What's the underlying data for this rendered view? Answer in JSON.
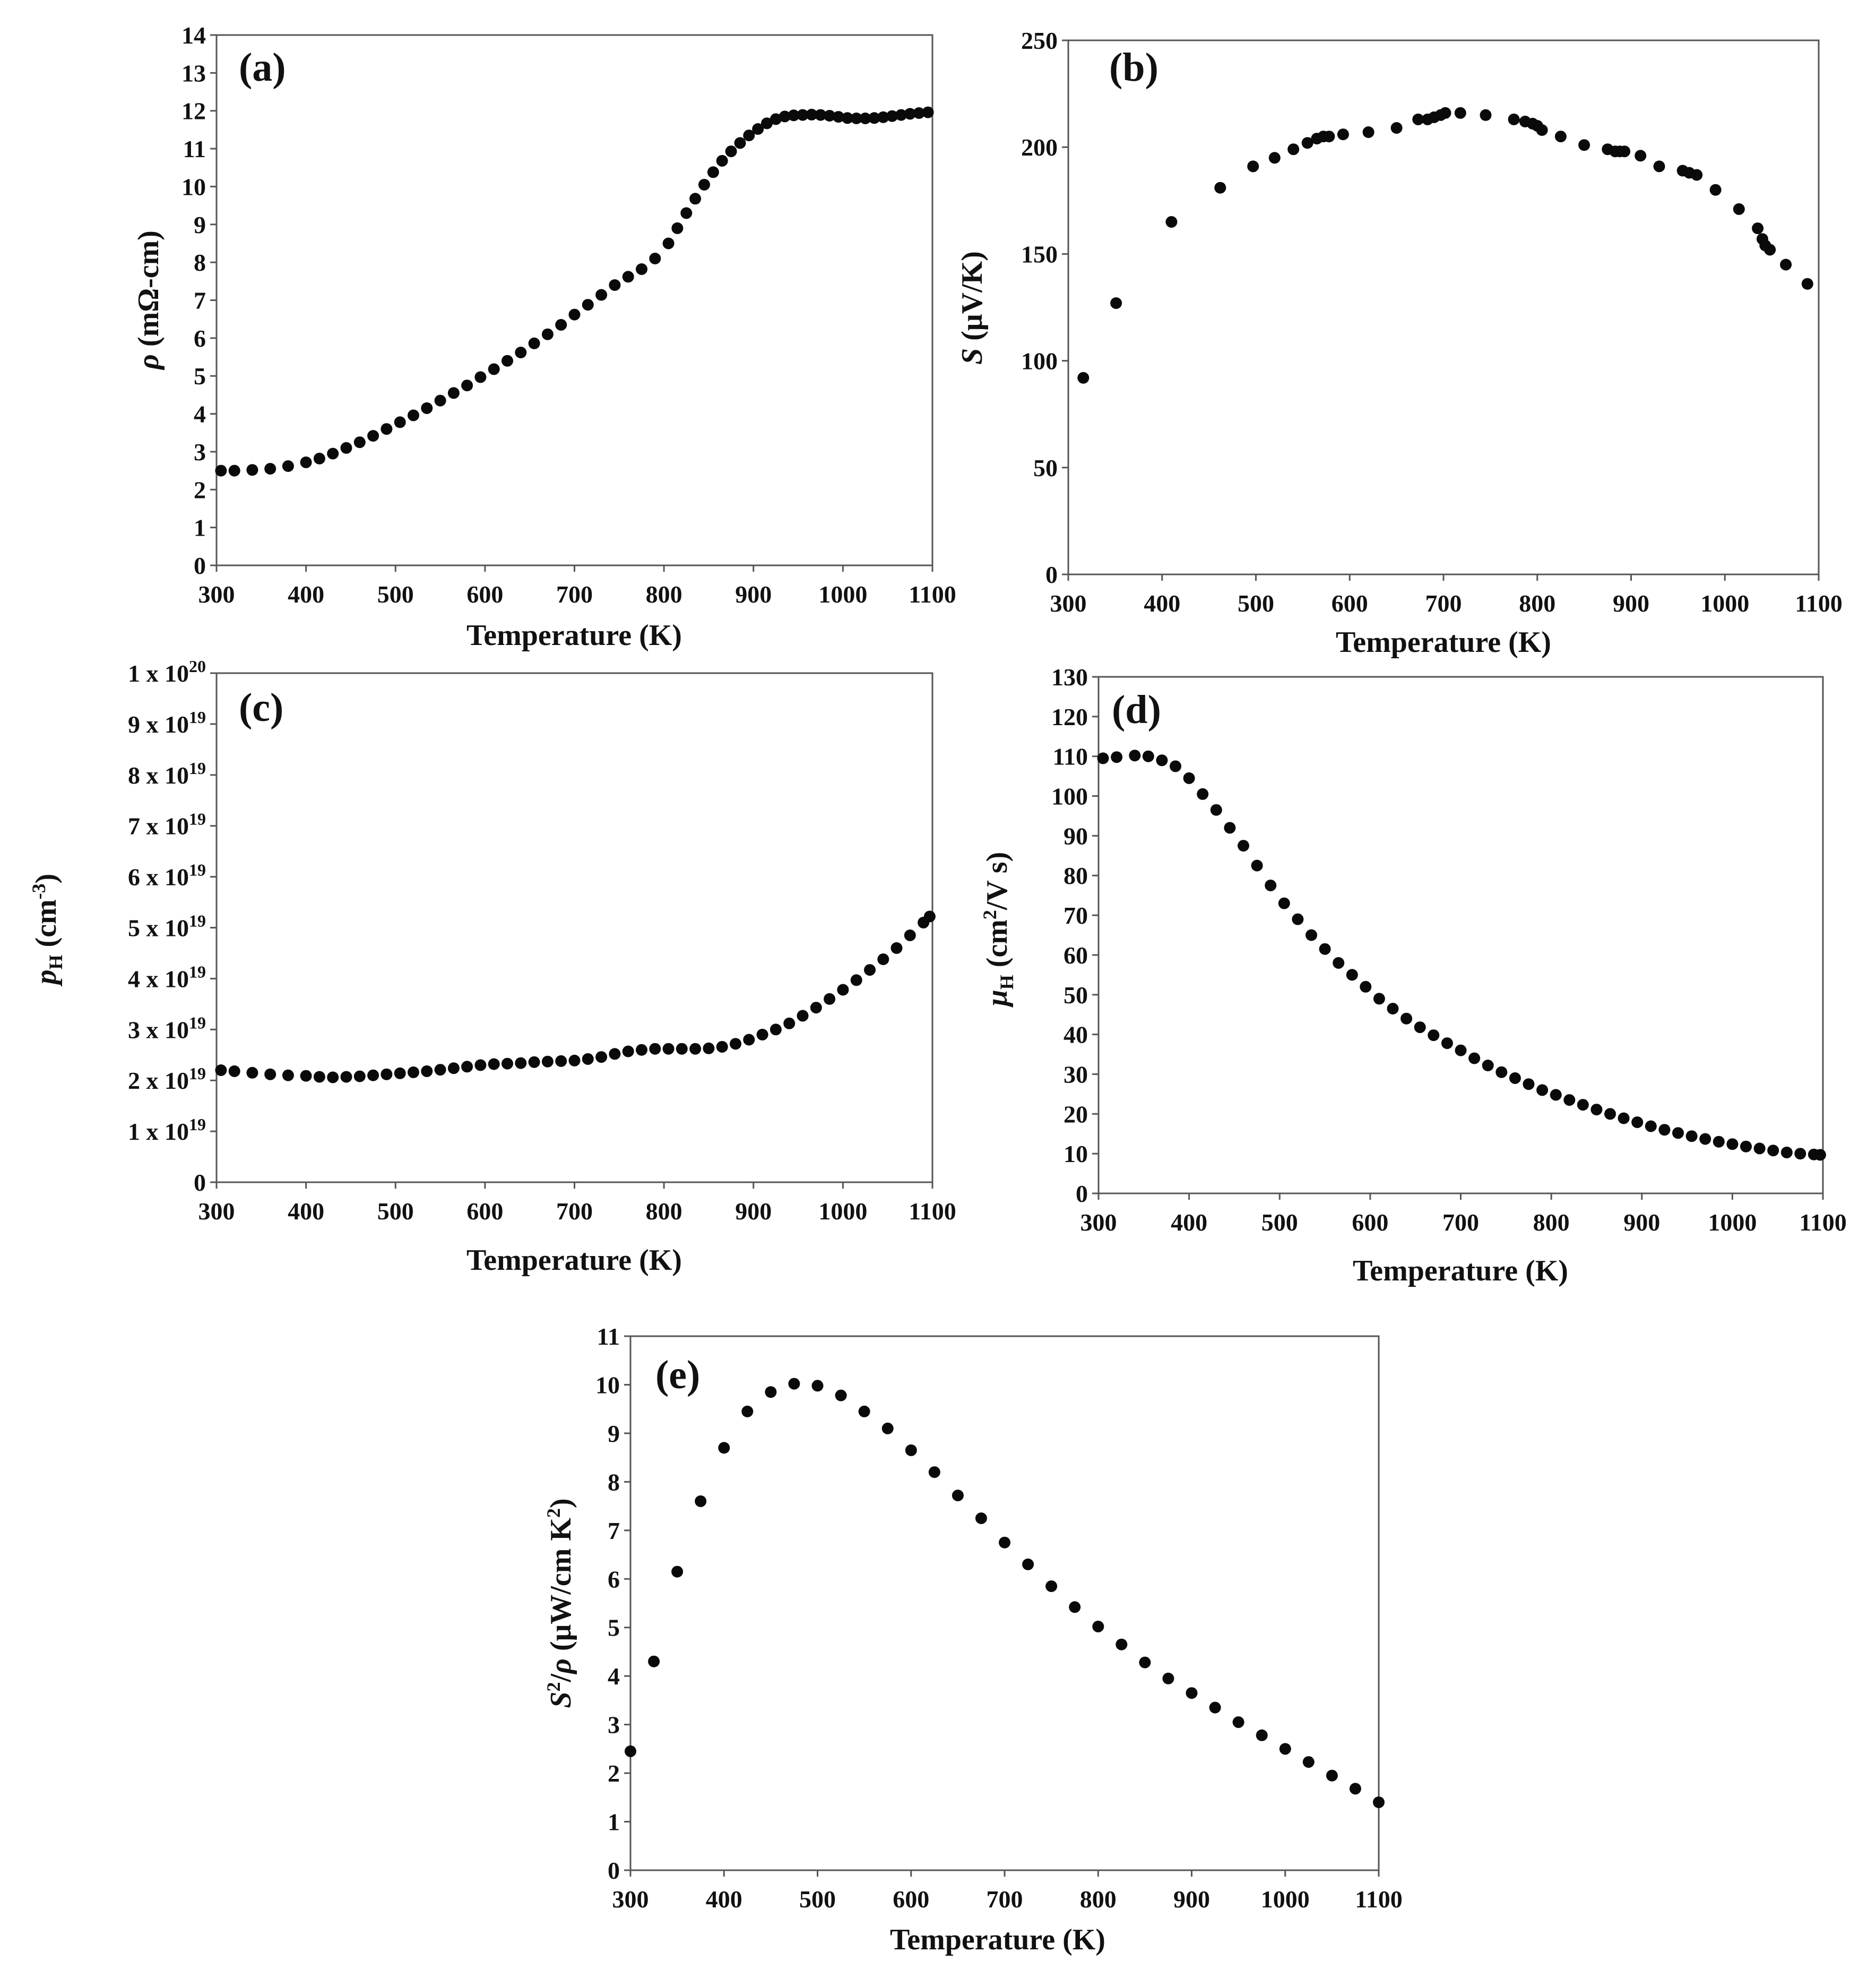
{
  "colors": {
    "marker": "#0a0a0a",
    "axis": "#555555",
    "text": "#111111",
    "background": "#ffffff"
  },
  "chart_data": [
    {
      "id": "a",
      "type": "scatter",
      "panel_label": "(a)",
      "xlabel": "Temperature (K)",
      "ylabel_symbol": "ρ",
      "ylabel_rest": " (mΩ-cm)",
      "xlim": [
        300,
        1100
      ],
      "ylim": [
        0,
        14
      ],
      "xticks": [
        300,
        400,
        500,
        600,
        700,
        800,
        900,
        1000,
        1100
      ],
      "yticks": [
        0,
        1,
        2,
        3,
        4,
        5,
        6,
        7,
        8,
        9,
        10,
        11,
        12,
        13,
        14
      ],
      "ytick_labels": [
        "0",
        "1",
        "2",
        "3",
        "4",
        "5",
        "6",
        "7",
        "8",
        "9",
        "10",
        "11",
        "12",
        "13",
        "14"
      ],
      "x": [
        305,
        320,
        340,
        360,
        380,
        400,
        415,
        430,
        445,
        460,
        475,
        490,
        505,
        520,
        535,
        550,
        565,
        580,
        595,
        610,
        625,
        640,
        655,
        670,
        685,
        700,
        715,
        730,
        745,
        760,
        775,
        790,
        805,
        815,
        825,
        835,
        845,
        855,
        865,
        875,
        885,
        895,
        905,
        915,
        925,
        935,
        945,
        955,
        965,
        975,
        985,
        995,
        1005,
        1015,
        1025,
        1035,
        1045,
        1055,
        1065,
        1075,
        1085,
        1095
      ],
      "y": [
        2.5,
        2.5,
        2.52,
        2.55,
        2.62,
        2.72,
        2.82,
        2.95,
        3.1,
        3.25,
        3.42,
        3.6,
        3.78,
        3.96,
        4.15,
        4.35,
        4.55,
        4.75,
        4.97,
        5.18,
        5.4,
        5.62,
        5.86,
        6.1,
        6.35,
        6.62,
        6.88,
        7.14,
        7.4,
        7.62,
        7.82,
        8.1,
        8.5,
        8.9,
        9.3,
        9.68,
        10.05,
        10.38,
        10.68,
        10.93,
        11.15,
        11.35,
        11.52,
        11.67,
        11.78,
        11.85,
        11.88,
        11.89,
        11.9,
        11.89,
        11.87,
        11.84,
        11.81,
        11.8,
        11.8,
        11.81,
        11.83,
        11.86,
        11.89,
        11.92,
        11.94,
        11.96
      ]
    },
    {
      "id": "b",
      "type": "scatter",
      "panel_label": "(b)",
      "xlabel": "Temperature (K)",
      "ylabel_symbol": "S",
      "ylabel_rest": " (μV/K)",
      "xlim": [
        300,
        1100
      ],
      "ylim": [
        0,
        250
      ],
      "xticks": [
        300,
        400,
        500,
        600,
        700,
        800,
        900,
        1000,
        1100
      ],
      "yticks": [
        0,
        50,
        100,
        150,
        200,
        250
      ],
      "ytick_labels": [
        "0",
        "50",
        "100",
        "150",
        "200",
        "250"
      ],
      "x": [
        316,
        351,
        410,
        462,
        497,
        520,
        540,
        555,
        565,
        572,
        578,
        593,
        620,
        650,
        673,
        683,
        690,
        697,
        702,
        718,
        745,
        775,
        787,
        795,
        800,
        805,
        825,
        850,
        875,
        883,
        888,
        893,
        910,
        930,
        955,
        962,
        970,
        990,
        1015,
        1035,
        1040,
        1043,
        1048,
        1065,
        1088
      ],
      "y": [
        92,
        127,
        165,
        181,
        191,
        195,
        199,
        202,
        204,
        205,
        205,
        206,
        207,
        209,
        213,
        213,
        214,
        215,
        216,
        216,
        215,
        213,
        212,
        211,
        210,
        208,
        205,
        201,
        199,
        198,
        198,
        198,
        196,
        191,
        189,
        188,
        187,
        180,
        171,
        162,
        157,
        154,
        152,
        145,
        136
      ]
    },
    {
      "id": "c",
      "type": "scatter",
      "panel_label": "(c)",
      "xlabel": "Temperature (K)",
      "ylabel_symbol": "p",
      "ylabel_sub": "H",
      "ylabel_rest": " (cm",
      "ylabel_sup": "-3",
      "ylabel_close": ")",
      "xlim": [
        300,
        1100
      ],
      "ylim": [
        0,
        10
      ],
      "xticks": [
        300,
        400,
        500,
        600,
        700,
        800,
        900,
        1000,
        1100
      ],
      "yticks": [
        0,
        1,
        2,
        3,
        4,
        5,
        6,
        7,
        8,
        9,
        10
      ],
      "ytick_labels": [
        "0",
        "1 x 10",
        "2 x 10",
        "3 x 10",
        "4 x 10",
        "5 x 10",
        "6 x 10",
        "7 x 10",
        "8 x 10",
        "9 x 10",
        "1 x 10"
      ],
      "ytick_exponents": [
        "",
        "19",
        "19",
        "19",
        "19",
        "19",
        "19",
        "19",
        "19",
        "19",
        "20"
      ],
      "y_unit_note": "values in units of 1 x 10^19 cm^-3",
      "x": [
        305,
        320,
        340,
        360,
        380,
        400,
        415,
        430,
        445,
        460,
        475,
        490,
        505,
        520,
        535,
        550,
        565,
        580,
        595,
        610,
        625,
        640,
        655,
        670,
        685,
        700,
        715,
        730,
        745,
        760,
        775,
        790,
        805,
        820,
        835,
        850,
        865,
        880,
        895,
        910,
        925,
        940,
        955,
        970,
        985,
        1000,
        1015,
        1030,
        1045,
        1060,
        1075,
        1090,
        1097
      ],
      "y": [
        2.2,
        2.18,
        2.15,
        2.12,
        2.1,
        2.09,
        2.07,
        2.06,
        2.07,
        2.08,
        2.1,
        2.12,
        2.14,
        2.16,
        2.18,
        2.21,
        2.24,
        2.27,
        2.3,
        2.32,
        2.33,
        2.34,
        2.36,
        2.37,
        2.38,
        2.39,
        2.42,
        2.46,
        2.52,
        2.57,
        2.6,
        2.62,
        2.62,
        2.62,
        2.62,
        2.63,
        2.66,
        2.72,
        2.8,
        2.9,
        3.0,
        3.12,
        3.27,
        3.43,
        3.6,
        3.78,
        3.97,
        4.17,
        4.38,
        4.6,
        4.85,
        5.1,
        5.22
      ]
    },
    {
      "id": "d",
      "type": "scatter",
      "panel_label": "(d)",
      "xlabel": "Temperature (K)",
      "ylabel_symbol": "μ",
      "ylabel_sub": "H",
      "ylabel_rest": " (cm",
      "ylabel_sup": "2",
      "ylabel_close": "/V s)",
      "xlim": [
        300,
        1100
      ],
      "ylim": [
        0,
        130
      ],
      "xticks": [
        300,
        400,
        500,
        600,
        700,
        800,
        900,
        1000,
        1100
      ],
      "yticks": [
        0,
        10,
        20,
        30,
        40,
        50,
        60,
        70,
        80,
        90,
        100,
        110,
        120,
        130
      ],
      "ytick_labels": [
        "0",
        "10",
        "20",
        "30",
        "40",
        "50",
        "60",
        "70",
        "80",
        "90",
        "100",
        "110",
        "120",
        "130"
      ],
      "x": [
        305,
        320,
        340,
        355,
        370,
        385,
        400,
        415,
        430,
        445,
        460,
        475,
        490,
        505,
        520,
        535,
        550,
        565,
        580,
        595,
        610,
        625,
        640,
        655,
        670,
        685,
        700,
        715,
        730,
        745,
        760,
        775,
        790,
        805,
        820,
        835,
        850,
        865,
        880,
        895,
        910,
        925,
        940,
        955,
        970,
        985,
        1000,
        1015,
        1030,
        1045,
        1060,
        1075,
        1090,
        1097
      ],
      "y": [
        109.5,
        109.8,
        110.2,
        110,
        109,
        107.5,
        104.5,
        100.5,
        96.5,
        92,
        87.5,
        82.5,
        77.5,
        73,
        69,
        65,
        61.5,
        58,
        55,
        52,
        49,
        46.5,
        44,
        41.8,
        39.8,
        37.8,
        36,
        34,
        32.2,
        30.5,
        29,
        27.5,
        26,
        24.8,
        23.5,
        22.3,
        21.1,
        20,
        18.9,
        17.9,
        16.9,
        16,
        15.2,
        14.4,
        13.7,
        13,
        12.4,
        11.8,
        11.3,
        10.8,
        10.3,
        10,
        9.8,
        9.7
      ]
    },
    {
      "id": "e",
      "type": "scatter",
      "panel_label": "(e)",
      "xlabel": "Temperature (K)",
      "ylabel_symbol": "S",
      "ylabel_sup": "2",
      "ylabel_rest": "/",
      "ylabel_symbol2": "ρ",
      "ylabel_tail": " (μW/cm K",
      "ylabel_sup2": "2",
      "ylabel_close": ")",
      "xlim": [
        300,
        1100
      ],
      "ylim": [
        0,
        11
      ],
      "xticks": [
        300,
        400,
        500,
        600,
        700,
        800,
        900,
        1000,
        1100
      ],
      "yticks": [
        0,
        1,
        2,
        3,
        4,
        5,
        6,
        7,
        8,
        9,
        10,
        11
      ],
      "ytick_labels": [
        "0",
        "1",
        "2",
        "3",
        "4",
        "5",
        "6",
        "7",
        "8",
        "9",
        "10",
        "11"
      ],
      "x": [
        300,
        325,
        350,
        375,
        400,
        425,
        450,
        475,
        500,
        525,
        550,
        575,
        600,
        625,
        650,
        675,
        700,
        725,
        750,
        775,
        800,
        825,
        850,
        875,
        900,
        925,
        950,
        975,
        1000,
        1025,
        1050,
        1075,
        1100
      ],
      "y": [
        2.45,
        4.3,
        6.15,
        7.6,
        8.7,
        9.45,
        9.85,
        10.02,
        9.98,
        9.78,
        9.45,
        9.1,
        8.65,
        8.2,
        7.72,
        7.25,
        6.75,
        6.3,
        5.85,
        5.42,
        5.02,
        4.65,
        4.28,
        3.95,
        3.65,
        3.35,
        3.05,
        2.78,
        2.5,
        2.23,
        1.95,
        1.68,
        1.4
      ]
    }
  ]
}
